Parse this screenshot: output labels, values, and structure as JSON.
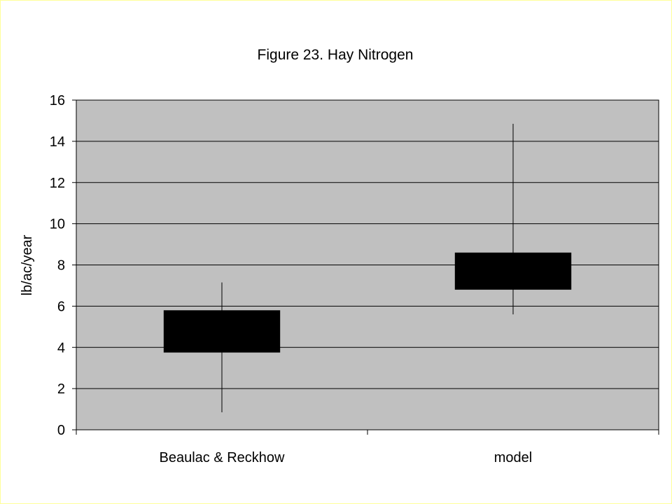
{
  "chart_data": {
    "type": "box",
    "title": "Figure 23.  Hay Nitrogen",
    "xlabel": "",
    "ylabel": "lb/ac/year",
    "ylim": [
      0,
      16
    ],
    "yticks": [
      0,
      2,
      4,
      6,
      8,
      10,
      12,
      14,
      16
    ],
    "grid": true,
    "legend": "none",
    "categories": [
      "Beaulac & Reckhow",
      "model"
    ],
    "boxes": [
      {
        "category": "Beaulac & Reckhow",
        "whisker_low": 0.85,
        "box_low": 3.75,
        "box_high": 5.8,
        "whisker_high": 7.15
      },
      {
        "category": "model",
        "whisker_low": 5.6,
        "box_low": 6.8,
        "box_high": 8.6,
        "whisker_high": 14.85
      }
    ],
    "colors": {
      "plot_background": "#c0c0c0",
      "box_fill": "#000000",
      "gridline": "#000000",
      "border": "#ffff99"
    }
  }
}
